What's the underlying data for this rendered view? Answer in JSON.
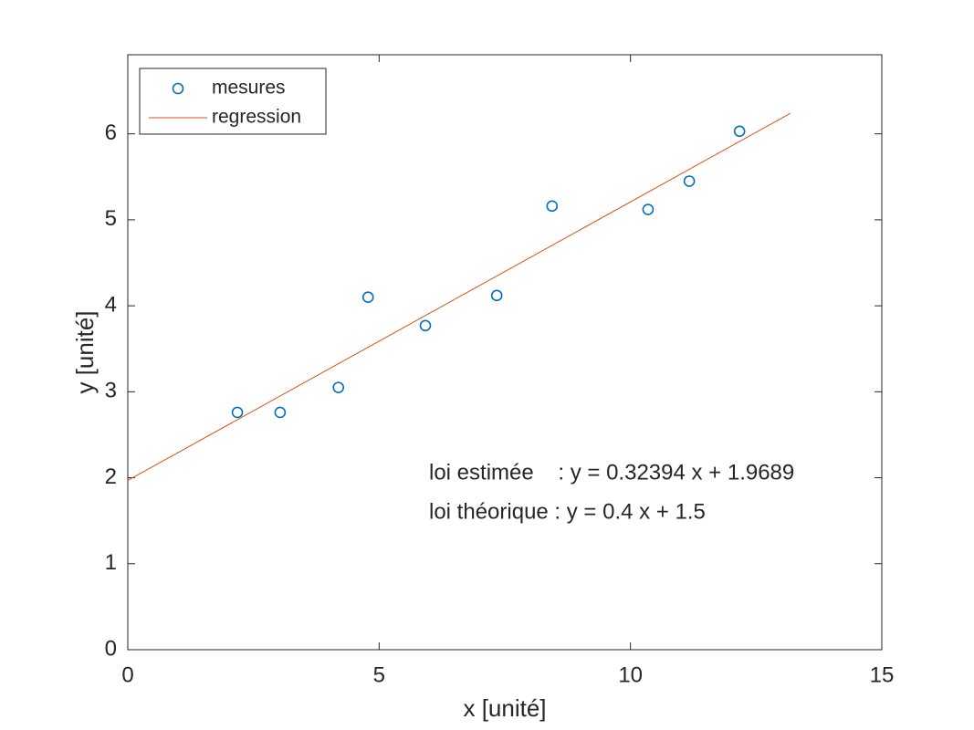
{
  "chart_data": {
    "type": "scatter",
    "xlabel": "x [unité]",
    "ylabel": "y [unité]",
    "xlim": [
      0,
      15
    ],
    "ylim": [
      0,
      6.92
    ],
    "xticks": [
      0,
      5,
      10,
      15
    ],
    "yticks": [
      0,
      1,
      2,
      3,
      4,
      5,
      6
    ],
    "grid": false,
    "legend": "upper left",
    "series": [
      {
        "name": "mesures",
        "color": "#0072BD",
        "mode": "markers",
        "x": [
          2.18,
          3.03,
          4.19,
          4.78,
          5.92,
          7.34,
          8.44,
          10.35,
          11.17,
          12.17
        ],
        "values": [
          2.76,
          2.76,
          3.05,
          4.1,
          3.77,
          4.12,
          5.16,
          5.12,
          5.45,
          6.03
        ]
      },
      {
        "name": "regression",
        "color": "#D95319",
        "mode": "lines",
        "x": [
          0,
          13.18
        ],
        "values": [
          1.9689,
          6.2384
        ]
      }
    ],
    "annotations": [
      "loi estimée    : y = 0.32394 x + 1.9689",
      "loi théorique : y = 0.4 x + 1.5"
    ]
  }
}
